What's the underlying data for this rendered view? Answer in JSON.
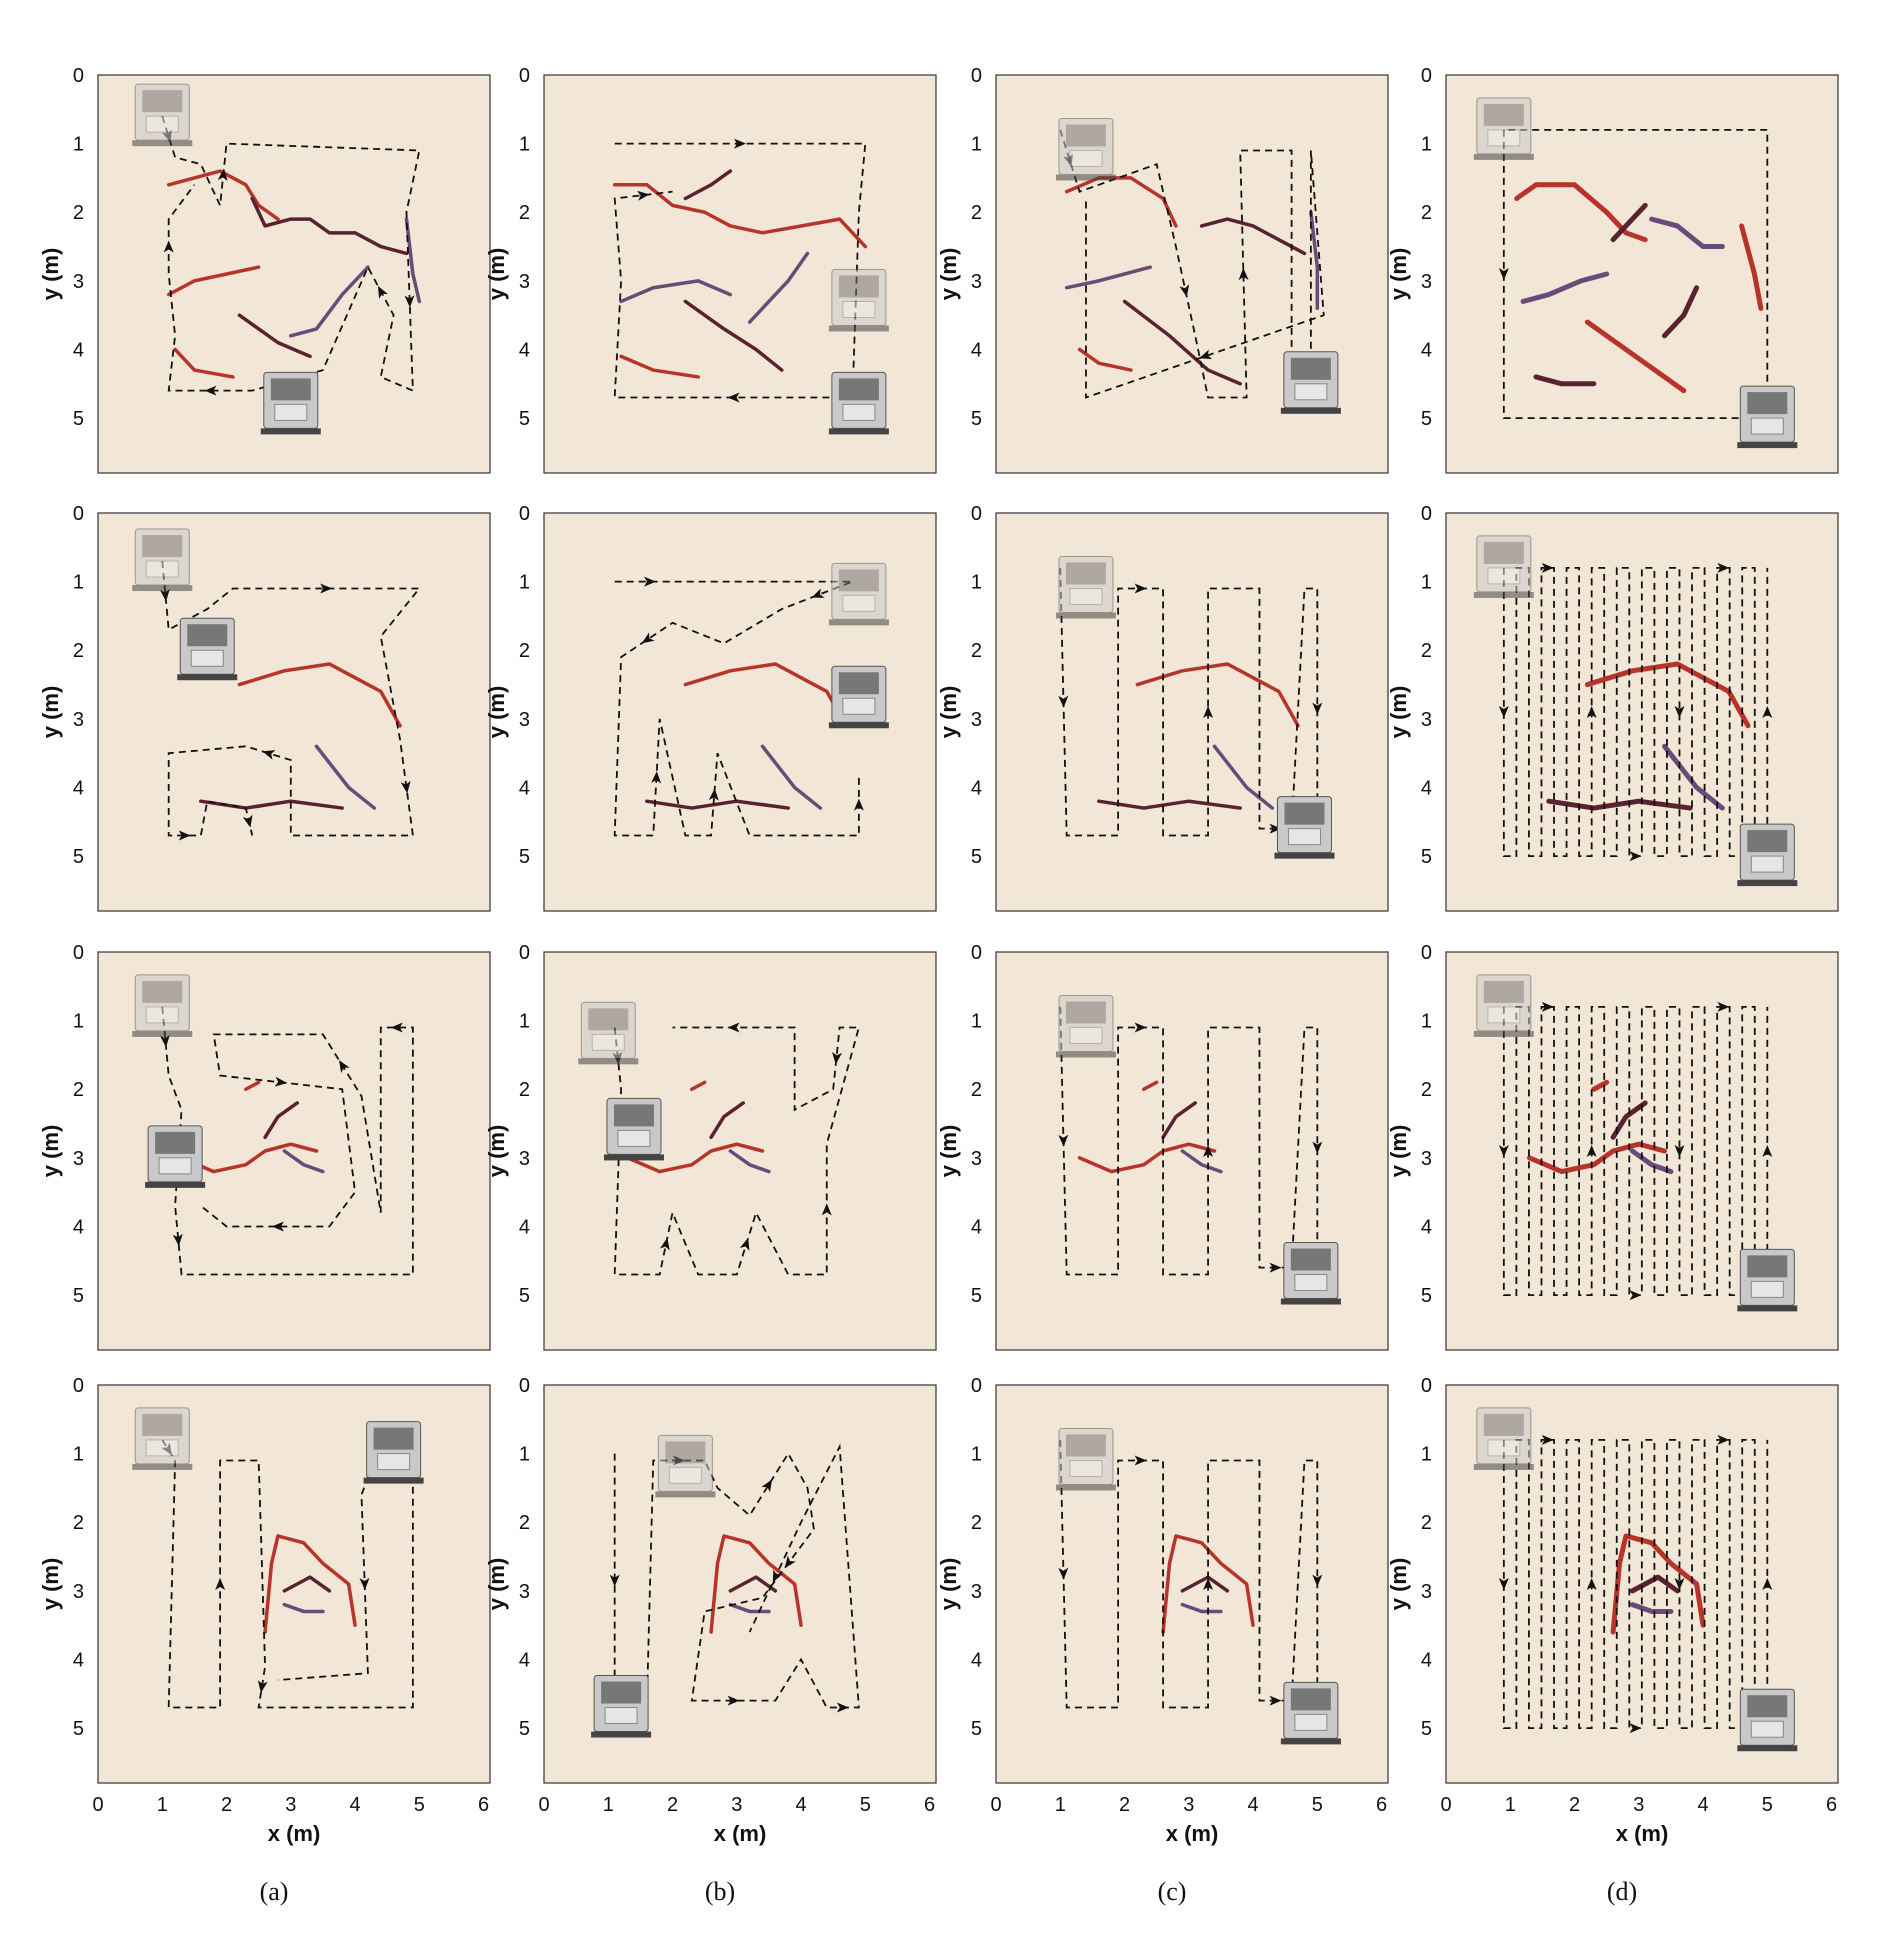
{
  "figure": {
    "column_captions": [
      "(a)",
      "(b)",
      "(c)",
      "(d)"
    ],
    "y_axis_title": "y (m)",
    "x_axis_title": "x (m)",
    "y_tick_labels": [
      "0",
      "1",
      "2",
      "3",
      "4",
      "5"
    ],
    "x_tick_labels": [
      "0",
      "1",
      "2",
      "3",
      "4",
      "5",
      "6"
    ],
    "x_range_m": [
      0,
      6.1
    ],
    "y_range_m": [
      0,
      5.8
    ],
    "colors": {
      "panel_background": "#f2e6d6",
      "trajectory": "#111111",
      "crack_red": "#b8342a",
      "crack_dark": "#5a2230",
      "crack_purple": "#6a4a78",
      "robot_body": "#c9c9c9"
    },
    "icons": [
      "robot-icon",
      "crack-vein-icon",
      "path-arrow-icon"
    ]
  },
  "chart_data": [
    {
      "type": "diagram",
      "layout": "4x4 grid of robot inspection trajectories over a floor area",
      "columns": [
        "(a)",
        "(b)",
        "(c)",
        "(d)"
      ],
      "rows": 4,
      "xlabel": "x (m)",
      "ylabel": "y (m)",
      "xlim": [
        0,
        6.1
      ],
      "ylim": [
        0,
        5.8
      ],
      "y_inverted": true
    }
  ]
}
